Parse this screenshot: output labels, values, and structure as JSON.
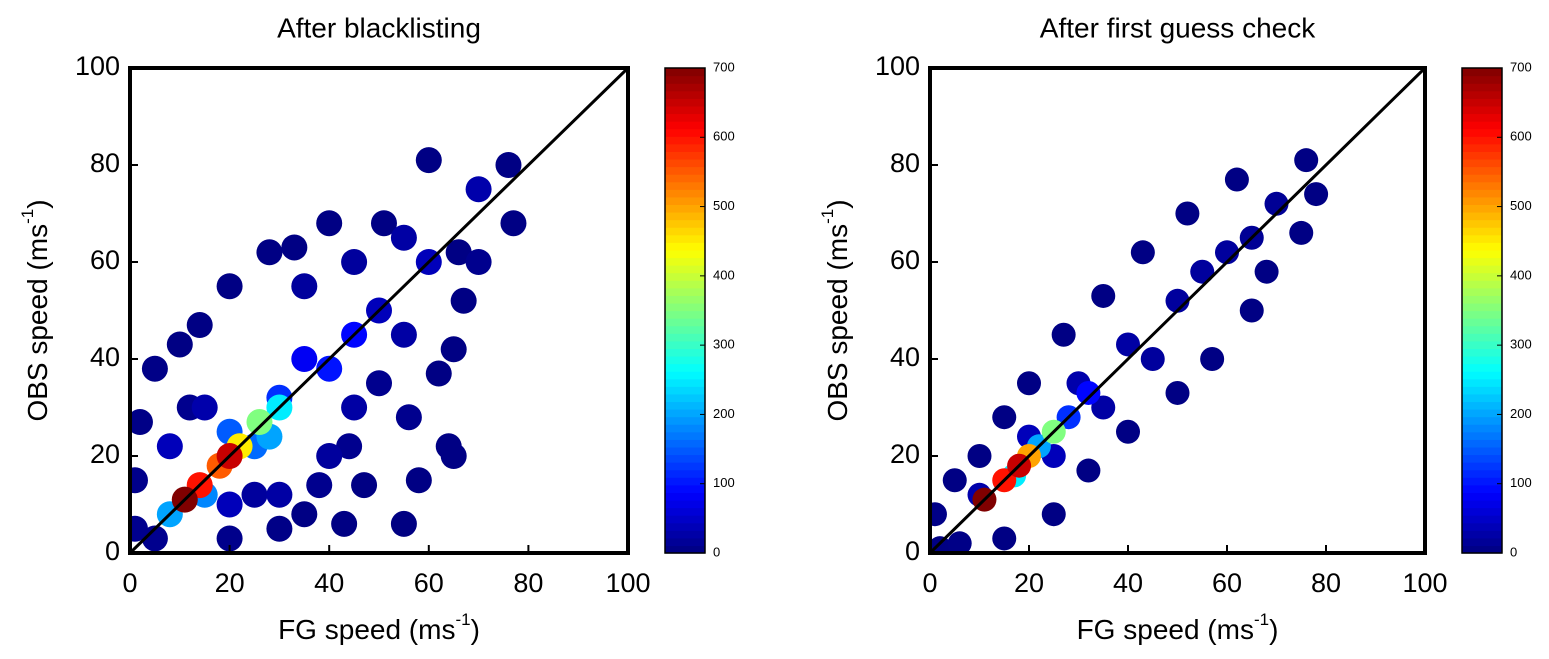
{
  "chart_data": [
    {
      "type": "scatter",
      "title": "After blacklisting",
      "xlabel": [
        "FG speed (ms",
        "-1",
        ")"
      ],
      "ylabel": [
        "OBS speed (ms",
        "-1",
        ")"
      ],
      "xlim": [
        0,
        100
      ],
      "ylim": [
        0,
        100
      ],
      "xticks": [
        0,
        20,
        40,
        60,
        80,
        100
      ],
      "yticks": [
        0,
        20,
        40,
        60,
        80,
        100
      ],
      "colormap": "jet",
      "clim": [
        0,
        700
      ],
      "cticks": [
        0,
        100,
        200,
        300,
        400,
        500,
        600,
        700
      ],
      "identity_line": true,
      "x": [
        55,
        43,
        35,
        30,
        47,
        58,
        64,
        65,
        62,
        65,
        67,
        66,
        77,
        76,
        60,
        51,
        40,
        33,
        28,
        20,
        14,
        10,
        5,
        2,
        1,
        1,
        5,
        20,
        12,
        50,
        70,
        38,
        56,
        44,
        25,
        35,
        45,
        55,
        70,
        45,
        55,
        40,
        30,
        15,
        8,
        20,
        50,
        60,
        35,
        40,
        30,
        45,
        25,
        20,
        15,
        8,
        28,
        30,
        26,
        22,
        18,
        14,
        11,
        20
      ],
      "y": [
        6,
        6,
        8,
        5,
        14,
        15,
        22,
        20,
        37,
        42,
        52,
        62,
        68,
        80,
        81,
        68,
        68,
        63,
        62,
        55,
        47,
        43,
        38,
        27,
        15,
        5,
        3,
        3,
        30,
        35,
        60,
        14,
        28,
        22,
        12,
        55,
        60,
        65,
        75,
        30,
        45,
        20,
        12,
        30,
        22,
        10,
        50,
        60,
        40,
        38,
        32,
        45,
        22,
        25,
        12,
        8,
        24,
        30,
        27,
        22,
        18,
        14,
        11,
        20
      ],
      "c": [
        2,
        3,
        3,
        5,
        3,
        3,
        3,
        3,
        3,
        3,
        3,
        3,
        3,
        3,
        3,
        3,
        3,
        3,
        3,
        3,
        3,
        3,
        5,
        5,
        8,
        10,
        10,
        8,
        10,
        10,
        10,
        10,
        10,
        10,
        20,
        20,
        20,
        25,
        30,
        25,
        25,
        20,
        25,
        30,
        40,
        40,
        40,
        40,
        80,
        100,
        120,
        90,
        160,
        150,
        180,
        200,
        200,
        250,
        350,
        450,
        550,
        600,
        700,
        650
      ]
    },
    {
      "type": "scatter",
      "title": "After first guess check",
      "xlabel": [
        "FG speed (ms",
        "-1",
        ")"
      ],
      "ylabel": [
        "OBS speed (ms",
        "-1",
        ")"
      ],
      "xlim": [
        0,
        100
      ],
      "ylim": [
        0,
        100
      ],
      "xticks": [
        0,
        20,
        40,
        60,
        80,
        100
      ],
      "yticks": [
        0,
        20,
        40,
        60,
        80,
        100
      ],
      "colormap": "jet",
      "clim": [
        0,
        700
      ],
      "cticks": [
        0,
        100,
        200,
        300,
        400,
        500,
        600,
        700
      ],
      "identity_line": true,
      "x": [
        2,
        1,
        5,
        10,
        15,
        20,
        27,
        35,
        43,
        52,
        62,
        76,
        78,
        75,
        68,
        65,
        57,
        50,
        40,
        32,
        25,
        15,
        6,
        10,
        20,
        30,
        40,
        50,
        60,
        70,
        45,
        35,
        25,
        55,
        65,
        28,
        32,
        22,
        17,
        25,
        20,
        15,
        11,
        18
      ],
      "y": [
        1,
        8,
        15,
        20,
        28,
        35,
        45,
        53,
        62,
        70,
        77,
        81,
        74,
        66,
        58,
        50,
        40,
        33,
        25,
        17,
        8,
        3,
        2,
        12,
        24,
        35,
        43,
        52,
        62,
        72,
        40,
        30,
        20,
        58,
        65,
        28,
        33,
        22,
        16,
        25,
        20,
        15,
        11,
        18
      ],
      "c": [
        3,
        5,
        3,
        3,
        3,
        3,
        3,
        3,
        3,
        3,
        3,
        3,
        3,
        3,
        3,
        3,
        3,
        3,
        3,
        3,
        3,
        3,
        5,
        30,
        40,
        30,
        25,
        20,
        20,
        15,
        20,
        25,
        40,
        20,
        15,
        120,
        90,
        200,
        250,
        350,
        500,
        600,
        700,
        650
      ]
    }
  ]
}
